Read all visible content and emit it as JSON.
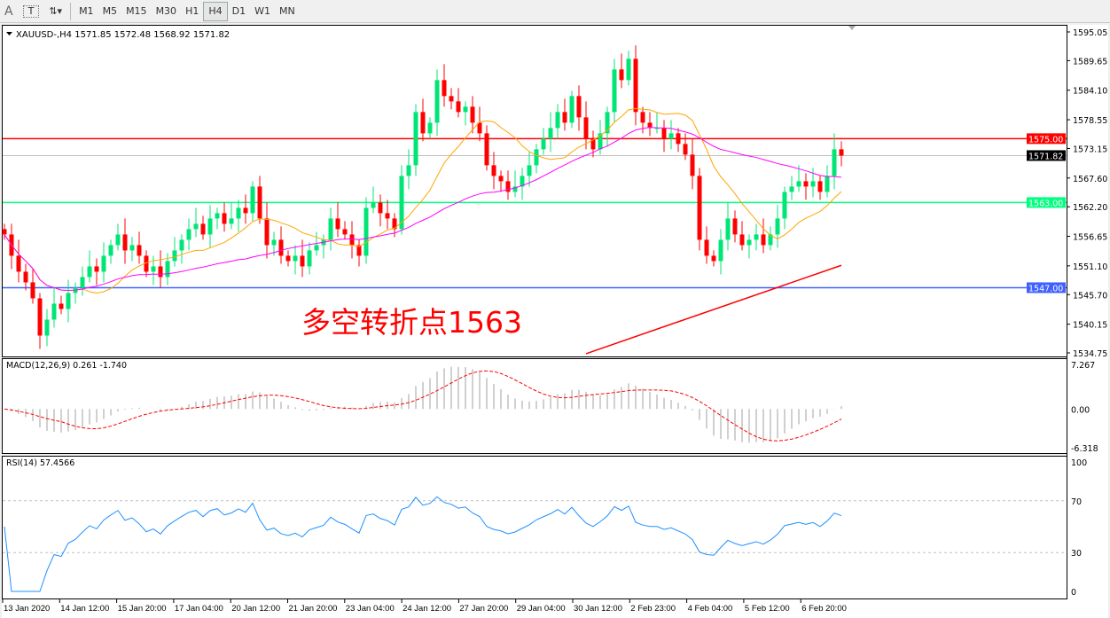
{
  "toolbar": {
    "text_tool": "A",
    "textlabel_tool": "T",
    "timeframes": [
      "M1",
      "M5",
      "M15",
      "M30",
      "H1",
      "H4",
      "D1",
      "W1",
      "MN"
    ],
    "active_timeframe": "H4"
  },
  "chart": {
    "header": "XAUUSD-,H4  1571.85 1572.48 1568.92 1571.82",
    "annotation": "多空转折点1563",
    "annotation_color": "#ff0000",
    "price_ticks": [
      "1595.05",
      "1589.65",
      "1584.10",
      "1578.55",
      "1573.15",
      "1567.60",
      "1562.20",
      "1556.65",
      "1551.10",
      "1545.70",
      "1540.15",
      "1534.75"
    ],
    "price_range": [
      1534.75,
      1595.05
    ],
    "hlines": [
      {
        "label": "1575.00",
        "value": 1575.0,
        "color": "#ff0000"
      },
      {
        "label": "1563.00",
        "value": 1563.0,
        "color": "#00ff7f"
      },
      {
        "label": "1547.00",
        "value": 1547.0,
        "color": "#4060ff"
      }
    ],
    "current_price": {
      "label": "1571.82",
      "value": 1571.82
    },
    "bull_color": "#00e676",
    "bear_color": "#ff0000",
    "closes": [
      1557,
      1553,
      1550,
      1548,
      1545,
      1538,
      1541,
      1544,
      1543,
      1546,
      1547,
      1549,
      1551,
      1550,
      1553,
      1555,
      1557,
      1554,
      1555,
      1553,
      1550,
      1551,
      1549,
      1552,
      1554,
      1556,
      1558,
      1559,
      1557,
      1560,
      1561,
      1559,
      1560,
      1562,
      1561,
      1566,
      1560,
      1555,
      1556,
      1553,
      1552,
      1553,
      1551,
      1554,
      1555,
      1556,
      1560,
      1558,
      1557,
      1555,
      1553,
      1562,
      1563,
      1561,
      1560,
      1558,
      1568,
      1570,
      1580,
      1576,
      1578,
      1586,
      1583,
      1582,
      1580,
      1581,
      1578,
      1576,
      1570,
      1568,
      1567,
      1565,
      1566,
      1568,
      1570,
      1573,
      1575,
      1577,
      1580,
      1578,
      1583,
      1579,
      1575,
      1573,
      1576,
      1580,
      1588,
      1586,
      1590,
      1580,
      1578,
      1577,
      1577,
      1575,
      1576,
      1574,
      1572,
      1568,
      1556,
      1553,
      1552,
      1556,
      1560,
      1557,
      1555,
      1556,
      1557,
      1555,
      1557,
      1560,
      1565,
      1566,
      1567,
      1566,
      1567,
      1565,
      1568,
      1573,
      1571.82
    ],
    "ma_colors": {
      "fast": "#ffa500",
      "slow": "#ff00ff",
      "long": "#ff0000"
    },
    "ma_long": {
      "from": {
        "bar": 82,
        "value": 1534.6
      },
      "to": {
        "bar": 118,
        "value": 1551.2
      }
    },
    "time_labels": [
      "13 Jan 2020",
      "14 Jan 12:00",
      "15 Jan 20:00",
      "17 Jan 04:00",
      "20 Jan 12:00",
      "21 Jan 20:00",
      "23 Jan 04:00",
      "24 Jan 12:00",
      "27 Jan 20:00",
      "29 Jan 04:00",
      "30 Jan 12:00",
      "2 Feb 23:00",
      "4 Feb 04:00",
      "5 Feb 12:00",
      "6 Feb 20:00"
    ]
  },
  "macd": {
    "label": "MACD(12,26,9) 0.261 -1.740",
    "ticks": [
      "7.267",
      "0.00",
      "-6.318"
    ],
    "range": [
      -6.318,
      7.267
    ]
  },
  "rsi": {
    "label": "RSI(14) 57.4566",
    "ticks": [
      "100",
      "70",
      "30",
      "0"
    ],
    "line_color": "#1e90ff"
  }
}
